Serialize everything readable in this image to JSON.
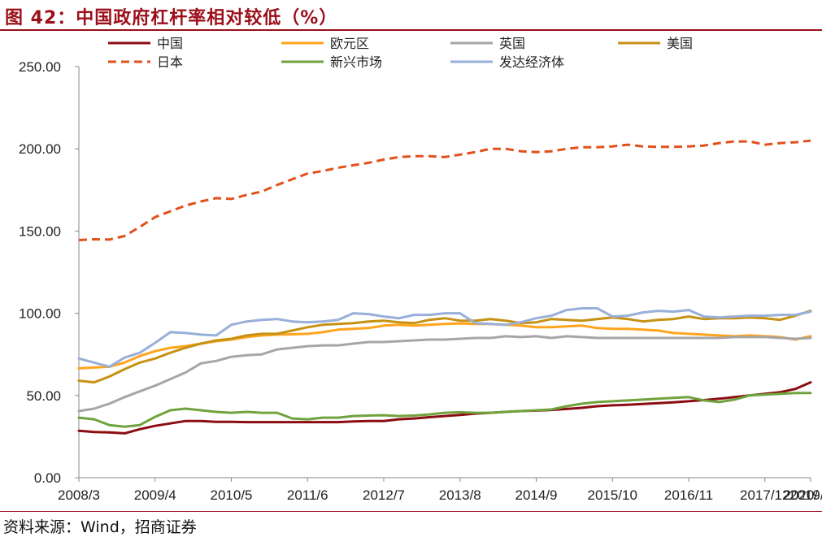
{
  "title": "图 42：中国政府杠杆率相对较低（%）",
  "source": "资料来源：Wind，招商证券",
  "chart_data": {
    "type": "line",
    "title": "图 42：中国政府杠杆率相对较低（%）",
    "xlabel": "",
    "ylabel": "",
    "ylim": [
      0,
      250
    ],
    "yticks": [
      "0.00",
      "50.00",
      "100.00",
      "150.00",
      "200.00",
      "250.00"
    ],
    "xtick_labels": [
      "2008/3",
      "2009/4",
      "2010/5",
      "2011/6",
      "2012/7",
      "2013/8",
      "2014/9",
      "2015/10",
      "2016/11",
      "2017/12",
      "2019/1",
      "2020/"
    ],
    "grid": false,
    "legend_position": "top",
    "x": [
      "2008/3",
      "2008/6",
      "2008/9",
      "2008/12",
      "2009/3",
      "2009/6",
      "2009/9",
      "2009/12",
      "2010/3",
      "2010/6",
      "2010/9",
      "2010/12",
      "2011/3",
      "2011/6",
      "2011/9",
      "2011/12",
      "2012/3",
      "2012/6",
      "2012/9",
      "2012/12",
      "2013/3",
      "2013/6",
      "2013/9",
      "2013/12",
      "2014/3",
      "2014/6",
      "2014/9",
      "2014/12",
      "2015/3",
      "2015/6",
      "2015/9",
      "2015/12",
      "2016/3",
      "2016/6",
      "2016/9",
      "2016/12",
      "2017/3",
      "2017/6",
      "2017/9",
      "2017/12",
      "2018/3",
      "2018/6",
      "2018/9",
      "2018/12",
      "2019/3",
      "2019/6",
      "2019/9",
      "2019/12",
      "2020/3"
    ],
    "series": [
      {
        "name": "中国",
        "color": "#8b0d12",
        "dash": "solid",
        "width": 3,
        "values": [
          28.5,
          27.8,
          27.5,
          27,
          29.5,
          31.5,
          33,
          34.5,
          34.5,
          34,
          34,
          33.8,
          33.8,
          33.8,
          33.8,
          33.8,
          33.8,
          33.8,
          34.2,
          34.5,
          34.5,
          35.5,
          36,
          36.8,
          37.5,
          38.2,
          39,
          39.5,
          40,
          40.5,
          40.8,
          41.2,
          41.8,
          42.5,
          43.5,
          44,
          44.3,
          44.8,
          45.3,
          45.8,
          46.5,
          47.2,
          48,
          49,
          50,
          51,
          52,
          54,
          58
        ]
      },
      {
        "name": "欧元区",
        "color": "#ffa41c",
        "dash": "solid",
        "width": 3,
        "values": [
          66.5,
          67,
          67.5,
          70,
          74,
          77,
          79,
          80,
          81.5,
          83,
          84,
          85.5,
          86.5,
          87,
          87.2,
          87.5,
          88.5,
          90,
          90.5,
          91,
          92.5,
          93,
          92.5,
          93,
          93.5,
          93.8,
          93.5,
          93.5,
          93,
          92.5,
          91.5,
          91.5,
          92,
          92.5,
          91,
          90.5,
          90.5,
          90,
          89.5,
          88,
          87.5,
          87,
          86.5,
          86,
          86.5,
          86,
          85.5,
          84,
          86
        ]
      },
      {
        "name": "英国",
        "color": "#a6a6a6",
        "dash": "solid",
        "width": 3,
        "values": [
          40.5,
          42,
          45,
          49,
          52.5,
          56,
          60,
          64,
          69.5,
          71,
          73.5,
          74.5,
          75,
          78,
          79,
          80,
          80.5,
          80.5,
          81.5,
          82.5,
          82.5,
          83,
          83.5,
          84,
          84,
          84.5,
          85,
          85,
          86,
          85.5,
          86,
          85,
          86,
          85.5,
          85,
          85,
          85,
          85,
          85,
          85,
          85,
          85,
          85,
          85.5,
          85.5,
          85.5,
          85,
          84.5,
          85
        ]
      },
      {
        "name": "美国",
        "color": "#c69214",
        "dash": "solid",
        "width": 3,
        "values": [
          59,
          58,
          61.5,
          66,
          70,
          72.5,
          76,
          79,
          81.5,
          83.5,
          84.5,
          86.5,
          87.5,
          87.5,
          89.5,
          91.5,
          93,
          93.5,
          94,
          95,
          95.5,
          94.5,
          94,
          96,
          97,
          95.5,
          95.5,
          96.5,
          95.5,
          94,
          94.5,
          96.5,
          96,
          95.5,
          96.5,
          97.5,
          96.5,
          95,
          96,
          96.5,
          98,
          96.5,
          97,
          97,
          97.5,
          97,
          96,
          98.5,
          101.5
        ]
      },
      {
        "name": "日本",
        "color": "#e2501b",
        "dash": "dashed",
        "width": 3,
        "values": [
          144.5,
          145,
          144.8,
          147,
          152.5,
          158.5,
          162,
          165.5,
          168,
          170,
          169.5,
          172,
          174,
          178,
          181.5,
          185,
          186.5,
          188.5,
          190,
          191.5,
          193.5,
          195,
          195.5,
          195.5,
          195,
          196.5,
          198,
          200,
          200,
          198.5,
          198,
          198.5,
          200,
          201,
          201,
          201.5,
          202.5,
          201.5,
          201.2,
          201.2,
          201.5,
          202,
          203.5,
          204.5,
          204.5,
          202.5,
          203.5,
          204,
          205
        ]
      },
      {
        "name": "新兴市场",
        "color": "#70a33e",
        "dash": "solid",
        "width": 3,
        "values": [
          36.5,
          35.5,
          32,
          31,
          32,
          37,
          41,
          42,
          41,
          40,
          39.5,
          40,
          39.5,
          39.5,
          36,
          35.5,
          36.5,
          36.5,
          37.5,
          37.8,
          38,
          37.5,
          37.8,
          38.5,
          39.5,
          39.8,
          39.5,
          39.5,
          40,
          40.5,
          41,
          41.5,
          43.5,
          45,
          46,
          46.5,
          47,
          47.5,
          48,
          48.5,
          49,
          47,
          46,
          47.5,
          50,
          50.5,
          51,
          51.5,
          51.5
        ]
      },
      {
        "name": "发达经济体",
        "color": "#98afd9",
        "dash": "solid",
        "width": 3,
        "values": [
          72.5,
          70,
          67.5,
          73,
          76,
          82,
          88.5,
          88,
          87,
          86.5,
          93,
          95,
          96,
          96.5,
          95,
          94.5,
          95,
          96,
          100,
          99.5,
          98,
          97,
          99,
          99,
          100,
          100,
          94,
          93.5,
          93,
          94.5,
          97,
          98.5,
          102,
          103,
          103,
          98,
          98.5,
          100.5,
          101.5,
          101,
          102,
          98,
          97.5,
          98,
          98.5,
          98.5,
          99,
          99,
          101
        ]
      }
    ]
  }
}
